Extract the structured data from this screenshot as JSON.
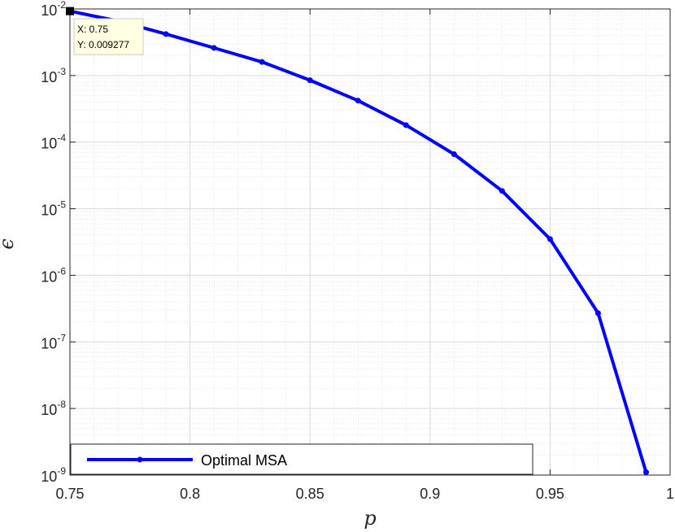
{
  "chart_data": {
    "type": "line",
    "xlabel": "p",
    "ylabel": "ϵ",
    "xlim": [
      0.75,
      1
    ],
    "ylim": [
      1e-09,
      0.01
    ],
    "yscale": "log",
    "grid": true,
    "minor_grid": true,
    "legend_position": "bottom-left",
    "x_ticks": [
      "0.75",
      "0.8",
      "0.85",
      "0.9",
      "0.95",
      "1"
    ],
    "y_ticks": [
      {
        "base": "10",
        "exp": "-2"
      },
      {
        "base": "10",
        "exp": "-3"
      },
      {
        "base": "10",
        "exp": "-4"
      },
      {
        "base": "10",
        "exp": "-5"
      },
      {
        "base": "10",
        "exp": "-6"
      },
      {
        "base": "10",
        "exp": "-7"
      },
      {
        "base": "10",
        "exp": "-8"
      },
      {
        "base": "10",
        "exp": "-9"
      }
    ],
    "series": [
      {
        "name": "Optimal MSA",
        "color": "#0000ff",
        "x": [
          0.75,
          0.77,
          0.79,
          0.81,
          0.83,
          0.85,
          0.87,
          0.89,
          0.91,
          0.93,
          0.95,
          0.97,
          0.99
        ],
        "y": [
          0.009277,
          0.0066,
          0.0042,
          0.0026,
          0.0016,
          0.00085,
          0.00042,
          0.00018,
          6.6e-05,
          1.85e-05,
          3.5e-06,
          2.7e-07,
          1.1e-09
        ]
      }
    ],
    "datatip": {
      "x_text": "X: 0.75",
      "y_text": "Y: 0.009277",
      "x": 0.75,
      "y": 0.009277
    }
  }
}
